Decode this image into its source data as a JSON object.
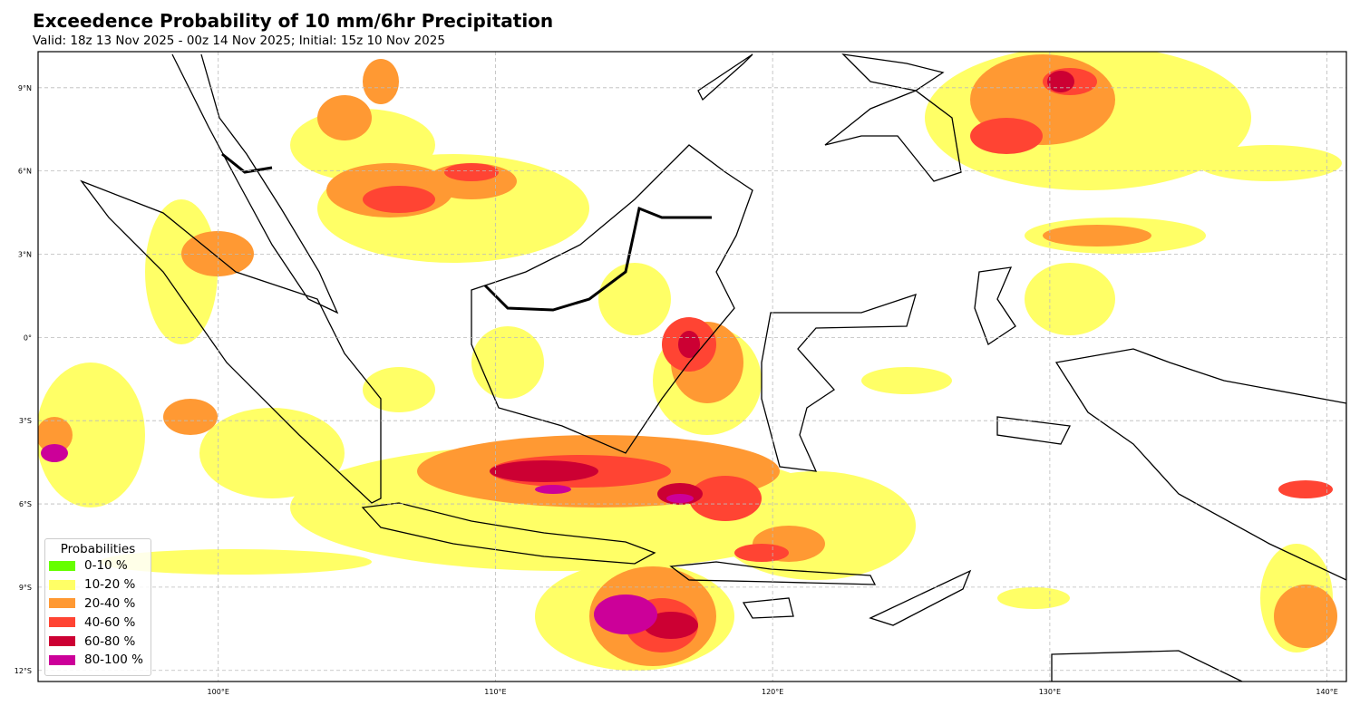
{
  "title": "Exceedence Probability of 10 mm/6hr Precipitation",
  "subtitle": "Valid: 18z 13 Nov 2025 - 00z 14 Nov 2025; Initial: 15z 10 Nov 2025",
  "map": {
    "extent_lon": [
      93.5,
      140.7
    ],
    "extent_lat": [
      -12.4,
      10.3
    ],
    "lon_ticks": [
      "100°E",
      "110°E",
      "120°E",
      "130°E",
      "140°E"
    ],
    "lat_ticks": [
      "9°N",
      "6°N",
      "3°N",
      "0°",
      "3°S",
      "6°S",
      "9°S",
      "12°S"
    ],
    "gridlines": true
  },
  "legend": {
    "title": "Probabilities",
    "placement": "bottom-left",
    "items": [
      {
        "label": "0-10 %",
        "color": "#66ff00"
      },
      {
        "label": "10-20 %",
        "color": "#ffff66"
      },
      {
        "label": "20-40 %",
        "color": "#ff9933"
      },
      {
        "label": "40-60 %",
        "color": "#ff4433"
      },
      {
        "label": "60-80 %",
        "color": "#cc0033"
      },
      {
        "label": "80-100 %",
        "color": "#cc0099"
      }
    ]
  }
}
